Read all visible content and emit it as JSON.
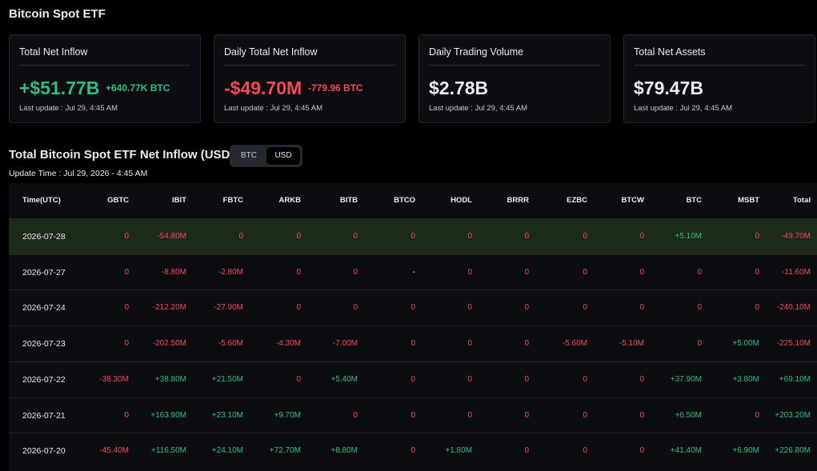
{
  "header": {
    "title": "Bitcoin Spot ETF"
  },
  "cards": [
    {
      "label": "Total Net Inflow",
      "value": "+$51.77B",
      "sub": "+640.77K BTC",
      "update": "Last update : Jul 29, 4:45 AM"
    },
    {
      "label": "Daily Total Net Inflow",
      "value": "-$49.70M",
      "sub": "-779.96 BTC",
      "update": "Last update : Jul 29, 4:45 AM"
    },
    {
      "label": "Daily Trading Volume",
      "value": "$2.78B",
      "update": "Last update : Jul 29, 4:45 AM"
    },
    {
      "label": "Total Net Assets",
      "value": "$79.47B",
      "update": "Last update : Jul 29, 4:45 AM"
    }
  ],
  "section": {
    "title": "Total Bitcoin Spot ETF Net Inflow (USD)",
    "toggle": [
      "BTC",
      "USD"
    ],
    "update_time": "Update Time : Jul 29, 2026 - 4:45 AM"
  },
  "table": {
    "columns": [
      "Time(UTC)",
      "GBTC",
      "IBIT",
      "FBTC",
      "ARKB",
      "BITB",
      "BTCO",
      "HODL",
      "BRRR",
      "EZBC",
      "BTCW",
      "BTC",
      "MSBT",
      "Total"
    ],
    "rows": [
      [
        "2026-07-28",
        "0",
        "-54.80M",
        "0",
        "0",
        "0",
        "0",
        "0",
        "0",
        "0",
        "0",
        "+5.10M",
        "0",
        "-49.70M"
      ],
      [
        "2026-07-27",
        "0",
        "-8.80M",
        "-2.80M",
        "0",
        "0",
        "-",
        "0",
        "0",
        "0",
        "0",
        "0",
        "0",
        "-11.60M"
      ],
      [
        "2026-07-24",
        "0",
        "-212.20M",
        "-27.90M",
        "0",
        "0",
        "0",
        "0",
        "0",
        "0",
        "0",
        "0",
        "0",
        "-240.10M"
      ],
      [
        "2026-07-23",
        "0",
        "-202.50M",
        "-5.60M",
        "-4.30M",
        "-7.00M",
        "0",
        "0",
        "0",
        "-5.60M",
        "-5.10M",
        "0",
        "+5.00M",
        "-225.10M"
      ],
      [
        "2026-07-22",
        "-38.30M",
        "+38.80M",
        "+21.50M",
        "0",
        "+5.40M",
        "0",
        "0",
        "0",
        "0",
        "0",
        "+37.90M",
        "+3.80M",
        "+69.10M"
      ],
      [
        "2026-07-21",
        "0",
        "+163.90M",
        "+23.10M",
        "+9.70M",
        "0",
        "0",
        "0",
        "0",
        "0",
        "0",
        "+6.50M",
        "0",
        "+203.20M"
      ],
      [
        "2026-07-20",
        "-45.40M",
        "+116.50M",
        "+24.10M",
        "+72.70M",
        "+8.80M",
        "0",
        "+1.80M",
        "0",
        "0",
        "0",
        "+41.40M",
        "+6.90M",
        "+226.80M"
      ]
    ]
  }
}
